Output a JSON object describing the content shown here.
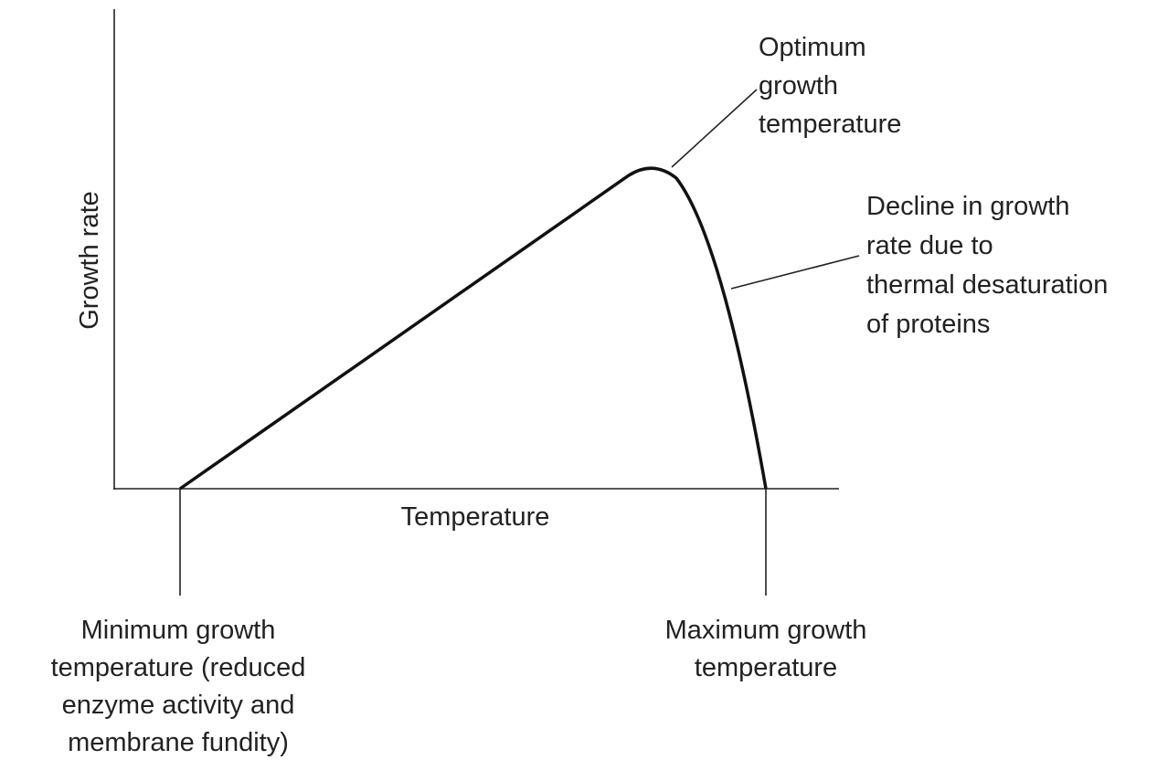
{
  "axes": {
    "y_label": "Growth rate",
    "x_label": "Temperature"
  },
  "annotations": [
    {
      "lines": [
        "Optimum",
        "growth",
        "temperature"
      ]
    },
    {
      "lines": [
        "Decline in growth",
        "rate due to",
        "thermal desaturation",
        "of proteins"
      ]
    },
    {
      "lines": [
        "Minimum growth",
        "temperature (reduced",
        "enzyme activity and",
        "membrane fundity)"
      ]
    },
    {
      "lines": [
        "Maximum growth",
        "temperature"
      ]
    }
  ]
}
